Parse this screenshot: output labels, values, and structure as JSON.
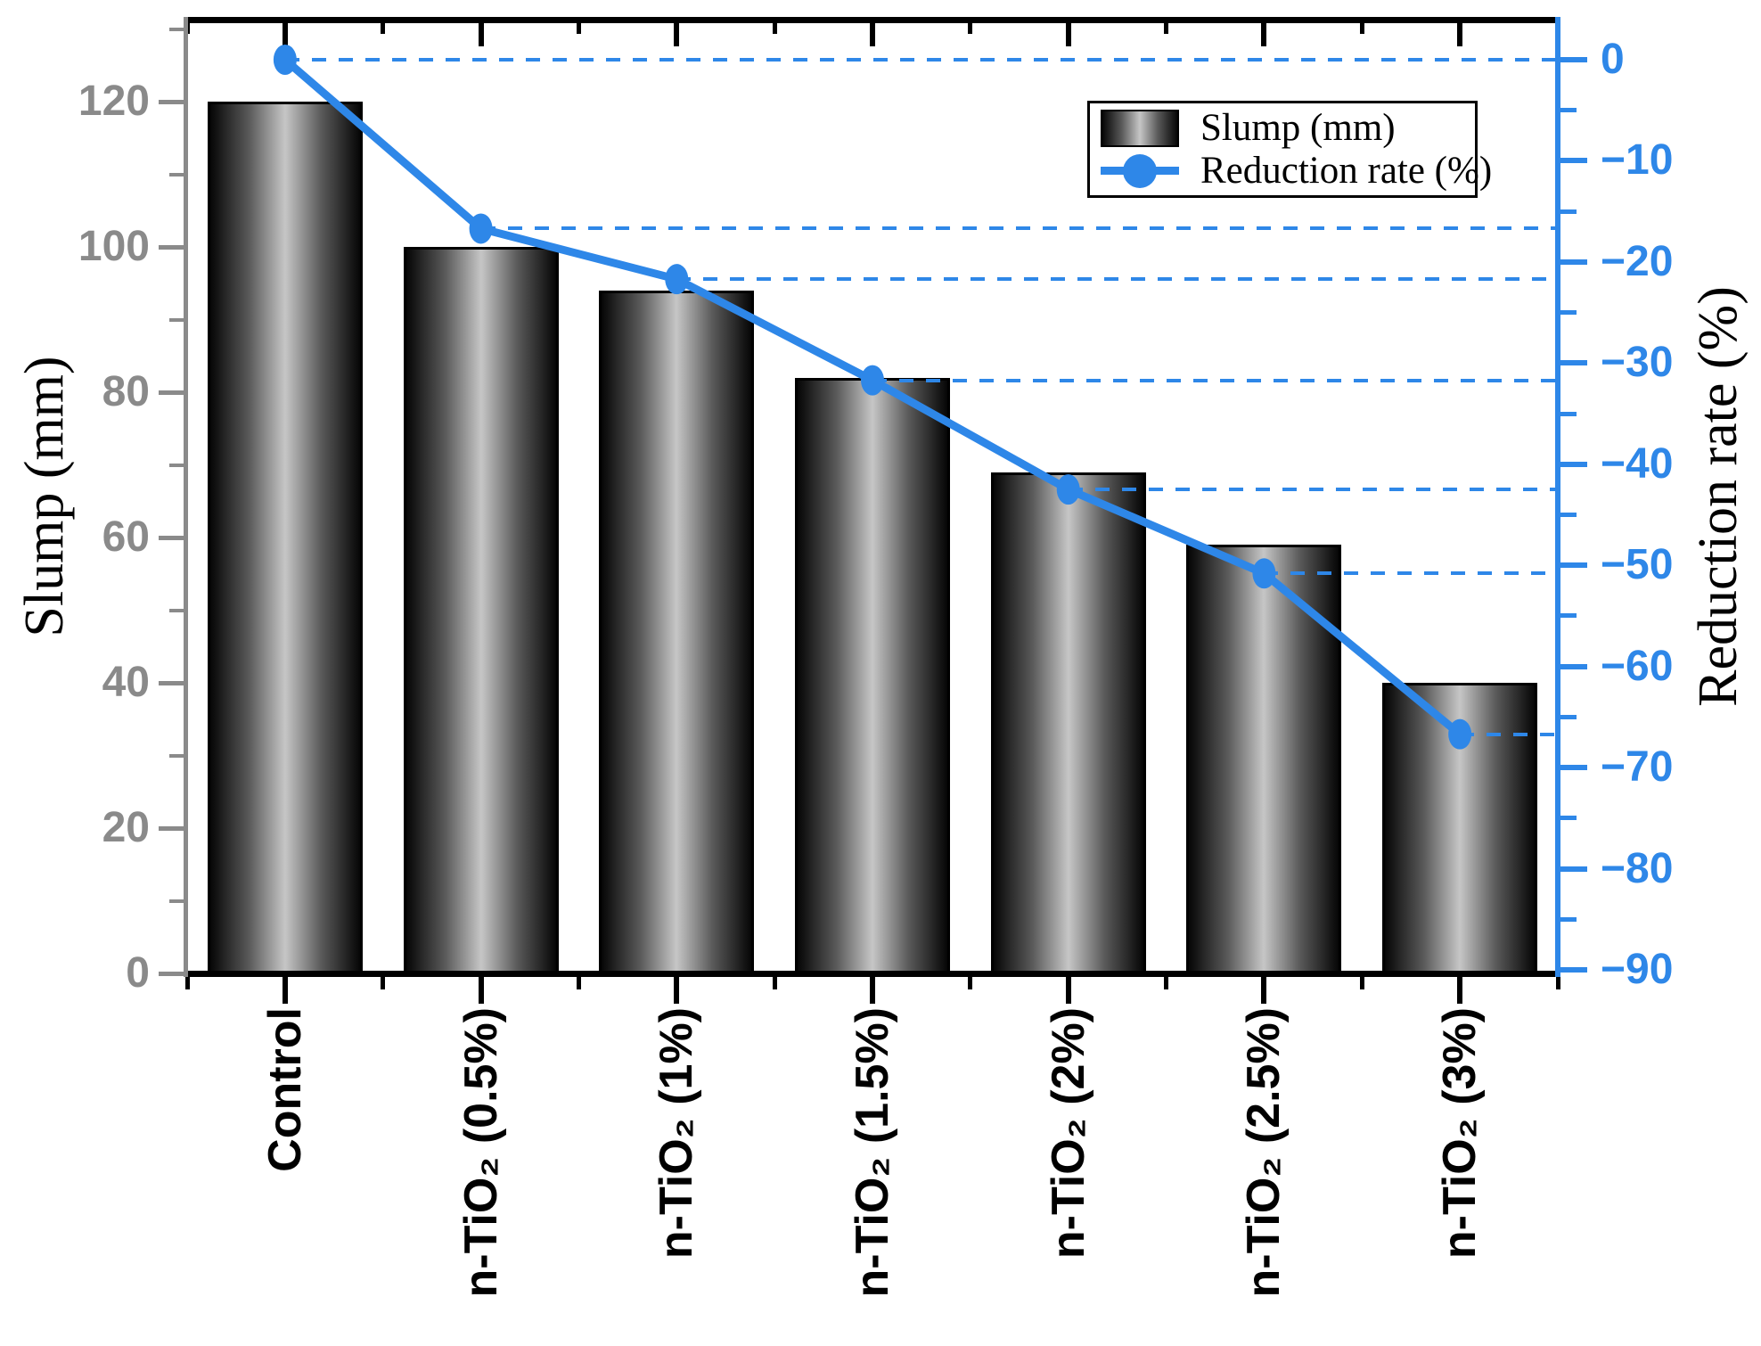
{
  "chart_data": {
    "type": "bar+line",
    "categories": [
      "Control",
      "n-TiO₂ (0.5%)",
      "n-TiO₂ (1%)",
      "n-TiO₂ (1.5%)",
      "n-TiO₂ (2%)",
      "n-TiO₂ (2.5%)",
      "n-TiO₂ (3%)"
    ],
    "series": [
      {
        "name": "Slump (mm)",
        "type": "bar",
        "axis": "left",
        "values": [
          120,
          100,
          94,
          82,
          69,
          59,
          40
        ]
      },
      {
        "name": "Reduction rate (%)",
        "type": "line",
        "axis": "right",
        "values": [
          0,
          -16.7,
          -21.7,
          -31.7,
          -42.5,
          -50.8,
          -66.7
        ]
      }
    ],
    "left_axis": {
      "title": "Slump (mm)",
      "tick_values": [
        0,
        20,
        40,
        60,
        80,
        100,
        120
      ],
      "tick_labels": [
        "0",
        "20",
        "40",
        "60",
        "80",
        "100",
        "120"
      ],
      "minor_tick_values": [
        10,
        30,
        50,
        70,
        90,
        110,
        130
      ],
      "range": [
        0,
        131
      ],
      "color": "#8A8A8A"
    },
    "right_axis": {
      "title": "Reduction rate (%)",
      "tick_values": [
        0,
        -10,
        -20,
        -30,
        -40,
        -50,
        -60,
        -70,
        -80,
        -90
      ],
      "tick_labels": [
        "0",
        "−10",
        "−20",
        "−30",
        "−40",
        "−50",
        "−60",
        "−70",
        "−80",
        "−90"
      ],
      "minor_tick_values": [
        -5,
        -15,
        -25,
        -35,
        -45,
        -55,
        -65,
        -75,
        -85
      ],
      "range": [
        4,
        -90.5
      ],
      "color": "#2E87E8"
    },
    "legend": {
      "position": "top-right-inside",
      "items": [
        {
          "label": "Slump (mm)",
          "marker": "gradient-bar-swatch"
        },
        {
          "label": "Reduction rate (%)",
          "marker": "line-with-circle"
        }
      ]
    },
    "annotations": "dashed horizontal leader lines from each line marker to the right axis",
    "grid": "off",
    "colors": {
      "line": "#2E87E8",
      "left_axis": "#8A8A8A",
      "bottom_axis": "#000000",
      "bar_border": "#000000",
      "bar_gradient_edge": "#060606",
      "bar_gradient_center": "#c6c6c6",
      "background": "#ffffff"
    }
  }
}
